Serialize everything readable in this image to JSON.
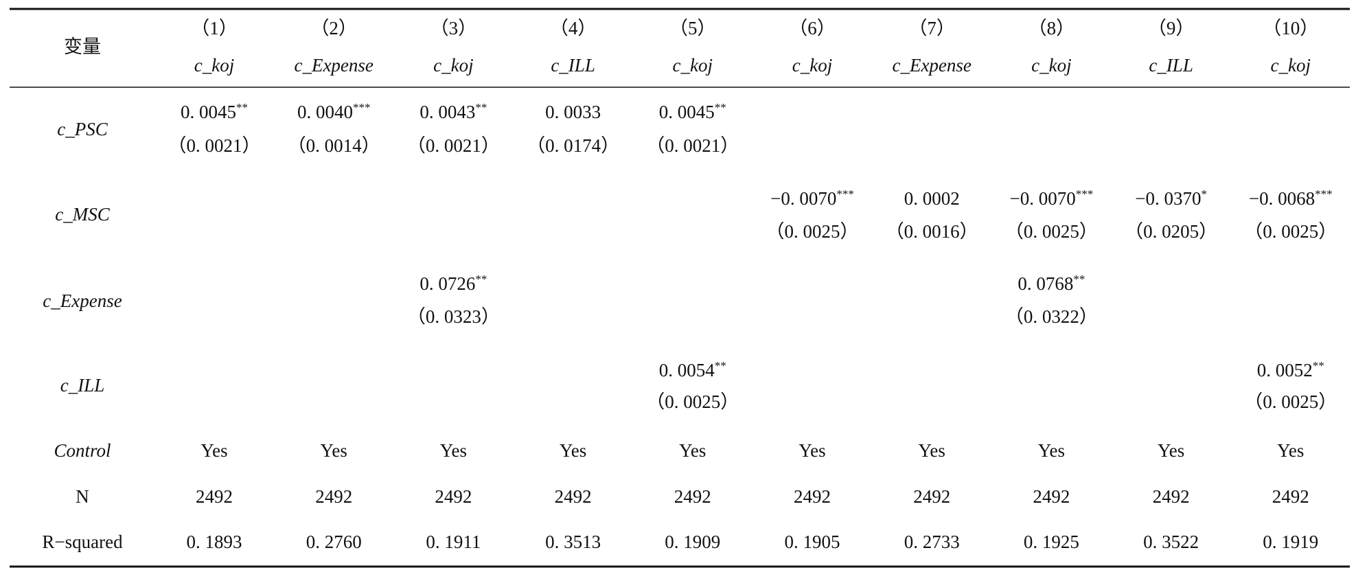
{
  "header": {
    "label": "变量",
    "columns": [
      {
        "number": "（1）",
        "dependent": "c_koj"
      },
      {
        "number": "（2）",
        "dependent": "c_Expense"
      },
      {
        "number": "（3）",
        "dependent": "c_koj"
      },
      {
        "number": "（4）",
        "dependent": "c_ILL"
      },
      {
        "number": "（5）",
        "dependent": "c_koj"
      },
      {
        "number": "（6）",
        "dependent": "c_koj"
      },
      {
        "number": "（7）",
        "dependent": "c_Expense"
      },
      {
        "number": "（8）",
        "dependent": "c_koj"
      },
      {
        "number": "（9）",
        "dependent": "c_ILL"
      },
      {
        "number": "（10）",
        "dependent": "c_koj"
      }
    ]
  },
  "rows": [
    {
      "label": "c_PSC",
      "cells": [
        {
          "coef": "0. 0045",
          "stars": "**",
          "se": "（0. 0021）"
        },
        {
          "coef": "0. 0040",
          "stars": "***",
          "se": "（0. 0014）"
        },
        {
          "coef": "0. 0043",
          "stars": "**",
          "se": "（0. 0021）"
        },
        {
          "coef": "0. 0033",
          "se": "（0. 0174）"
        },
        {
          "coef": "0. 0045",
          "stars": "**",
          "se": "（0. 0021）"
        },
        null,
        null,
        null,
        null,
        null
      ]
    },
    {
      "label": "c_MSC",
      "cells": [
        null,
        null,
        null,
        null,
        null,
        {
          "coef": "−0. 0070",
          "stars": "***",
          "se": "（0. 0025）"
        },
        {
          "coef": "0. 0002",
          "se": "（0. 0016）"
        },
        {
          "coef": "−0. 0070",
          "stars": "***",
          "se": "（0. 0025）"
        },
        {
          "coef": "−0. 0370",
          "stars": "*",
          "se": "（0. 0205）"
        },
        {
          "coef": "−0. 0068",
          "stars": "***",
          "se": "（0. 0025）"
        }
      ]
    },
    {
      "label": "c_Expense",
      "cells": [
        null,
        null,
        {
          "coef": "0. 0726",
          "stars": "**",
          "se": "（0. 0323）"
        },
        null,
        null,
        null,
        null,
        {
          "coef": "0. 0768",
          "stars": "**",
          "se": "（0. 0322）"
        },
        null,
        null
      ]
    },
    {
      "label": "c_ILL",
      "cells": [
        null,
        null,
        null,
        null,
        {
          "coef": "0. 0054",
          "stars": "**",
          "se": "（0. 0025）"
        },
        null,
        null,
        null,
        null,
        {
          "coef": "0. 0052",
          "stars": "**",
          "se": "（0. 0025）"
        }
      ]
    }
  ],
  "control": {
    "label": "Control",
    "values": [
      "Yes",
      "Yes",
      "Yes",
      "Yes",
      "Yes",
      "Yes",
      "Yes",
      "Yes",
      "Yes",
      "Yes"
    ]
  },
  "n": {
    "label": "N",
    "values": [
      2492,
      2492,
      2492,
      2492,
      2492,
      2492,
      2492,
      2492,
      2492,
      2492
    ]
  },
  "r_squared": {
    "label": "R−squared",
    "values": [
      "0. 1893",
      "0. 2760",
      "0. 1911",
      "0. 3513",
      "0. 1909",
      "0. 1905",
      "0. 2733",
      "0. 1925",
      "0. 3522",
      "0. 1919"
    ]
  }
}
